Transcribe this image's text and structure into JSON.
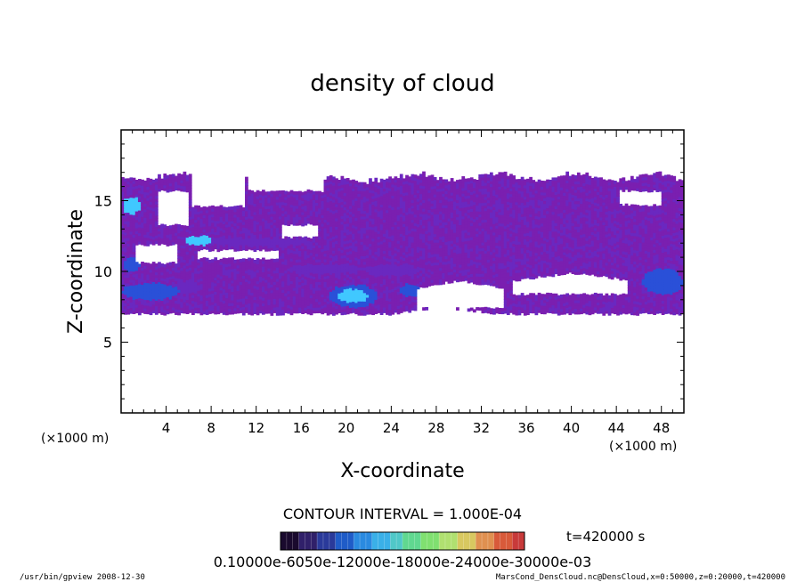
{
  "chart_data": {
    "type": "heatmap",
    "title": "density of cloud",
    "xlabel": "X-coordinate",
    "ylabel": "Z-coordinate",
    "x_unit": "(×1000 m)",
    "y_unit": "(×1000 m)",
    "xlim": [
      0,
      50
    ],
    "ylim": [
      0,
      20
    ],
    "x_ticks": [
      "4",
      "8",
      "12",
      "16",
      "20",
      "24",
      "28",
      "32",
      "36",
      "40",
      "44",
      "48"
    ],
    "y_ticks": [
      "5",
      "10",
      "15"
    ],
    "contour_interval": "CONTOUR INTERVAL = 1.000E-04",
    "time_label": "t=420000 s",
    "colorbar": {
      "min": 0.0,
      "max": 0.001,
      "tick_text": "0.10000e-6050e-12000e-18000e-24000e-30000e-03",
      "colors": [
        "#1a0a2e",
        "#30206a",
        "#2a3a9a",
        "#1f5cc8",
        "#2a8ae0",
        "#3ab0e8",
        "#50c8c8",
        "#60d890",
        "#80e070",
        "#b0e070",
        "#d8c860",
        "#e09050",
        "#d85a3a",
        "#c83a3a"
      ]
    },
    "regions": [
      {
        "label": "cloud layer",
        "x_range": [
          0,
          50
        ],
        "z_range": [
          7,
          16.6
        ],
        "value_level": "low"
      },
      {
        "label": "dense patch",
        "x_range": [
          19,
          23
        ],
        "z_range": [
          7.5,
          9
        ],
        "value_level": "high"
      },
      {
        "label": "dense patch",
        "x_range": [
          0,
          5
        ],
        "z_range": [
          8,
          10
        ],
        "value_level": "medium"
      },
      {
        "label": "dense patch",
        "x_range": [
          46,
          50
        ],
        "z_range": [
          8,
          10.5
        ],
        "value_level": "medium"
      }
    ]
  },
  "footer": {
    "left": "/usr/bin/gpview   2008-12-30",
    "right": "MarsCond_DensCloud.nc@DensCloud,x=0:50000,z=0:20000,t=420000"
  },
  "colors": {
    "cloud_base": "#7a1fb0",
    "cloud_mid": "#6a28c0",
    "cloud_dense": "#2a50d8",
    "cloud_core": "#40c8ff",
    "background": "#ffffff"
  }
}
